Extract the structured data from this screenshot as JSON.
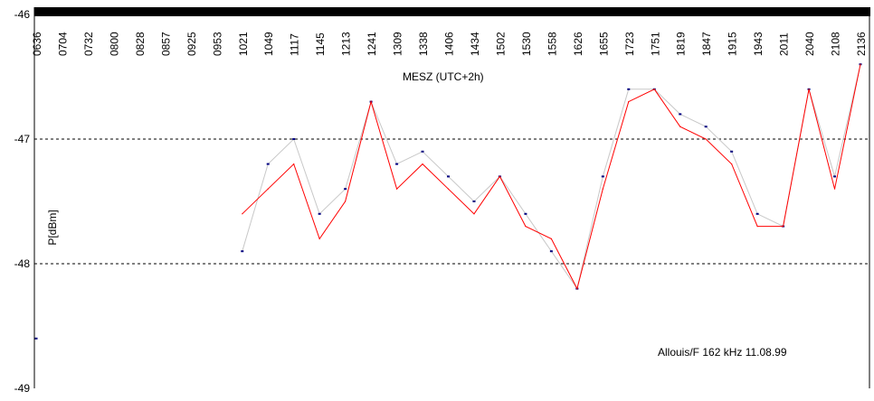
{
  "chart_data": {
    "type": "scatter",
    "title": "",
    "ylabel": "P[dBm]",
    "xlabel": "",
    "annotations": {
      "timezone": "MESZ  (UTC+2h)",
      "station": "Allouis/F 162 kHz  11.08.99"
    },
    "x_ticks": [
      "0636",
      "0704",
      "0732",
      "0800",
      "0828",
      "0857",
      "0925",
      "0953",
      "1021",
      "1049",
      "1117",
      "1145",
      "1213",
      "1241",
      "1309",
      "1338",
      "1406",
      "1434",
      "1502",
      "1530",
      "1558",
      "1626",
      "1655",
      "1723",
      "1751",
      "1819",
      "1847",
      "1915",
      "1943",
      "2011",
      "2040",
      "2108",
      "2136"
    ],
    "y_ticks": [
      "-46",
      "-47",
      "-48",
      "-49"
    ],
    "ylim": [
      -49,
      -46
    ],
    "grid": {
      "horizontal_dashed": [
        -47,
        -48
      ]
    },
    "colors": {
      "raw_points": "#000080",
      "raw_line": "#c8c8c8",
      "smoothed_line": "#ff0000"
    },
    "series": [
      {
        "kind": "raw",
        "x": [
          "0636",
          "1021",
          "1049",
          "1117",
          "1145",
          "1213",
          "1241",
          "1309",
          "1338",
          "1406",
          "1434",
          "1502",
          "1530",
          "1558",
          "1626",
          "1655",
          "1723",
          "1751",
          "1819",
          "1847",
          "1915",
          "1943",
          "2011",
          "2040",
          "2108",
          "2136"
        ],
        "values": [
          -48.6,
          -47.9,
          -47.2,
          -47.0,
          -47.6,
          -47.4,
          -46.7,
          -47.2,
          -47.1,
          -47.3,
          -47.5,
          -47.3,
          -47.6,
          -47.9,
          -48.2,
          -47.3,
          -46.6,
          -46.6,
          -46.8,
          -46.9,
          -47.1,
          -47.6,
          -47.7,
          -46.6,
          -47.3,
          -46.4
        ]
      },
      {
        "kind": "smoothed",
        "x": [
          "1021",
          "1049",
          "1117",
          "1145",
          "1213",
          "1241",
          "1309",
          "1338",
          "1406",
          "1434",
          "1502",
          "1530",
          "1558",
          "1626",
          "1655",
          "1723",
          "1751",
          "1819",
          "1847",
          "1915",
          "1943",
          "2011",
          "2040",
          "2108",
          "2136"
        ],
        "values": [
          -47.6,
          -47.4,
          -47.2,
          -47.8,
          -47.5,
          -46.7,
          -47.4,
          -47.2,
          -47.4,
          -47.6,
          -47.3,
          -47.7,
          -47.8,
          -48.2,
          -47.4,
          -46.7,
          -46.6,
          -46.9,
          -47.0,
          -47.2,
          -47.7,
          -47.7,
          -46.6,
          -47.4,
          -46.4
        ]
      }
    ]
  }
}
